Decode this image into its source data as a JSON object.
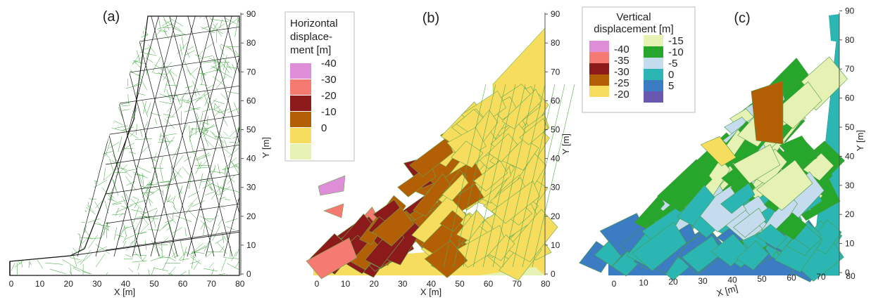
{
  "panels": [
    {
      "label": "(a)",
      "xlabel": "X [m]",
      "ylabel": "Y [m]",
      "xticks": [
        "0",
        "10",
        "20",
        "30",
        "40",
        "50",
        "60",
        "70",
        "80"
      ],
      "yticks": [
        "0",
        "10",
        "20",
        "30",
        "40",
        "50",
        "60",
        "70",
        "80",
        "90"
      ]
    },
    {
      "label": "(b)",
      "xlabel": "X [m]",
      "ylabel": "Y [m]",
      "xticks": [
        "0",
        "10",
        "20",
        "30",
        "40",
        "50",
        "60",
        "70",
        "80"
      ],
      "yticks": [
        "0",
        "10",
        "20",
        "30",
        "40",
        "50",
        "60",
        "70",
        "80",
        "90"
      ],
      "legend": {
        "title_lines": [
          "Horizontal",
          "displace-",
          "ment [m]"
        ],
        "entries": [
          {
            "label": "-40",
            "color": "#dd8ed6"
          },
          {
            "label": "-30",
            "color": "#f47a72"
          },
          {
            "label": "-20",
            "color": "#8c1a1a"
          },
          {
            "label": "-10",
            "color": "#b35f06"
          },
          {
            "label": "0",
            "color": "#f6dd5e"
          },
          {
            "label": "",
            "color": "#e6f2b3"
          }
        ]
      }
    },
    {
      "label": "(c)",
      "xlabel": "X [m]",
      "ylabel": "Y [m]",
      "xticks": [
        "0",
        "10",
        "20",
        "30",
        "40",
        "50",
        "60",
        "70",
        "80"
      ],
      "yticks": [
        "0",
        "10",
        "20",
        "30",
        "40",
        "50",
        "60",
        "70",
        "80",
        "90"
      ],
      "legend": {
        "title_lines": [
          "Vertical",
          "displacement [m]"
        ],
        "col1": [
          {
            "label": "-40",
            "color": "#dd8ed6"
          },
          {
            "label": "-35",
            "color": "#f47a72"
          },
          {
            "label": "-30",
            "color": "#8c1a1a"
          },
          {
            "label": "-25",
            "color": "#b35f06"
          },
          {
            "label": "-20",
            "color": "#f6dd5e"
          }
        ],
        "col2": [
          {
            "label": "-15",
            "color": "#e6f2b3"
          },
          {
            "label": "-10",
            "color": "#26a62a"
          },
          {
            "label": "-5",
            "color": "#c5dbee"
          },
          {
            "label": "0",
            "color": "#2bb6b4"
          },
          {
            "label": "5",
            "color": "#3b7cc2"
          },
          {
            "label": "",
            "color": "#6a58b0"
          }
        ]
      }
    }
  ],
  "colors": {
    "mesh_green": "#2f9e2f",
    "mesh_black": "#111111",
    "axis": "#555555"
  }
}
